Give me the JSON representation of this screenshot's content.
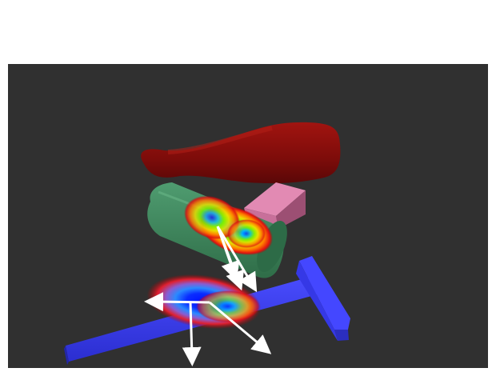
{
  "scene": {
    "background_color": "#303030",
    "objects": [
      {
        "id": "bowling-pin",
        "color": "#8e0d0b",
        "icon": "red-pin-object"
      },
      {
        "id": "mallet-head",
        "color": "#3f8a5f",
        "icon": "green-cylinder-object"
      },
      {
        "id": "mallet-handle",
        "color": "#d87aa4",
        "icon": "pink-box-object"
      },
      {
        "id": "hammer",
        "color": "#3a3df0",
        "icon": "blue-hammer-object"
      }
    ],
    "heatmaps": [
      {
        "id": "heatmap-green-object",
        "colors": [
          "#0000ff",
          "#00bfff",
          "#7cff00",
          "#ffff00",
          "#ff8000",
          "#ff0000"
        ]
      },
      {
        "id": "heatmap-blue-object",
        "colors": [
          "#0000ff",
          "#00bfff",
          "#7cff00",
          "#ffff00",
          "#ff8000",
          "#ff0000"
        ]
      }
    ],
    "arrow_color": "#ffffff"
  }
}
